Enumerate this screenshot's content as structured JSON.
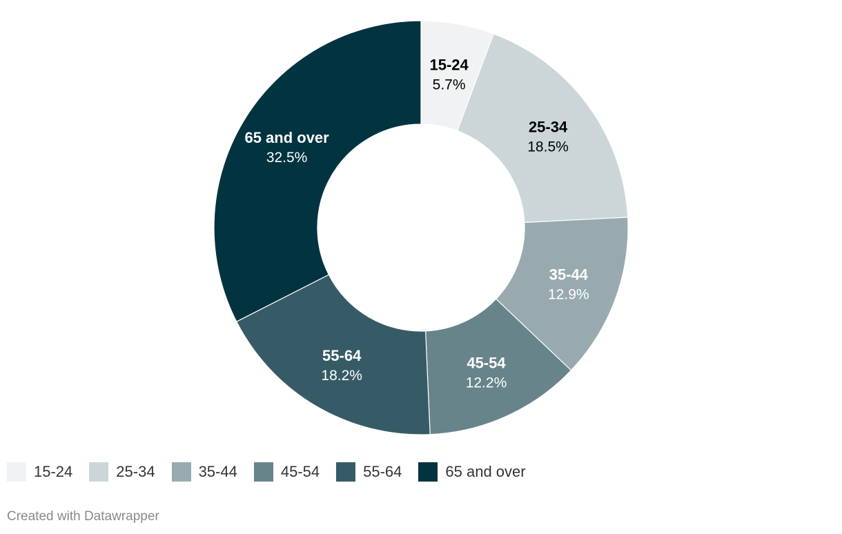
{
  "chart_data": {
    "type": "pie",
    "donut": true,
    "title": "",
    "categories": [
      "15-24",
      "25-34",
      "35-44",
      "45-54",
      "55-64",
      "65 and over"
    ],
    "values": [
      5.7,
      18.5,
      12.9,
      12.2,
      18.2,
      32.5
    ],
    "value_labels": [
      "5.7%",
      "18.5%",
      "12.9%",
      "12.2%",
      "18.2%",
      "32.5%"
    ],
    "colors": [
      "#f1f2f3",
      "#ccd6d9",
      "#98aaaf",
      "#67848a",
      "#365b66",
      "#023341"
    ],
    "label_colors": [
      "#000000",
      "#000000",
      "#ffffff",
      "#ffffff",
      "#ffffff",
      "#ffffff"
    ],
    "legend": {
      "position": "bottom-left",
      "items": [
        "15-24",
        "25-34",
        "35-44",
        "45-54",
        "55-64",
        "65 and over"
      ]
    }
  },
  "footer": {
    "credit": "Created with Datawrapper"
  }
}
